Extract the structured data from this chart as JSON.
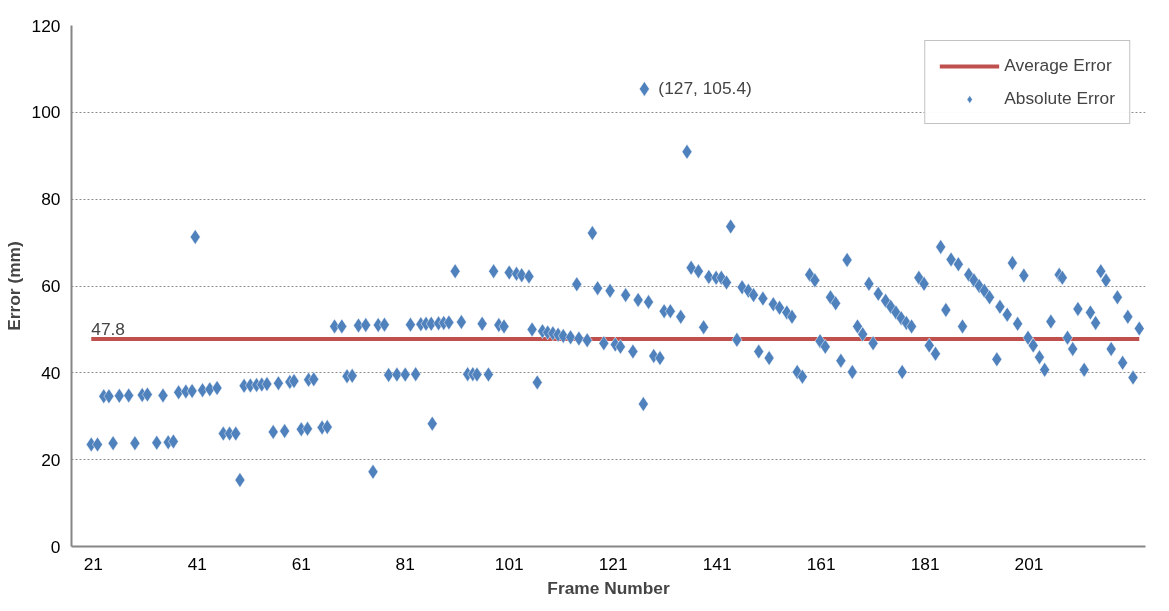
{
  "chart_data": {
    "type": "scatter",
    "xlabel": "Frame Number",
    "ylabel": "Error (mm)",
    "xlim": [
      16.8,
      223.4
    ],
    "xticks": [
      21,
      41,
      61,
      81,
      101,
      121,
      141,
      161,
      181,
      201
    ],
    "ylim": [
      0,
      120
    ],
    "yticks": [
      0,
      20,
      40,
      60,
      80,
      100,
      120
    ],
    "grid": "y",
    "legend": "top right",
    "series": [
      {
        "name": "Average Error",
        "type": "line",
        "color": "#c0504d",
        "line_style": "solid",
        "marker": "none",
        "x": [
          20.6,
          222.2
        ],
        "values": [
          47.8,
          47.8
        ],
        "value_labels": [
          "47.8",
          null
        ]
      },
      {
        "name": "Absolute Error",
        "color": "#4f81bd",
        "marker": "diamond",
        "x": [
          20.6,
          21.8,
          24.8,
          29,
          33.2,
          35.4,
          36.4,
          23,
          24,
          26,
          27.8,
          30.4,
          31.4,
          34.4,
          37.4,
          38.8,
          40,
          42,
          43.4,
          44.8,
          40.6,
          46,
          47.2,
          48.4,
          49.2,
          50,
          51.2,
          52.4,
          53.4,
          54.4,
          56.6,
          58.8,
          59.6,
          62.4,
          63.4,
          55.6,
          57.8,
          61,
          62.2,
          65,
          66,
          67.4,
          68.8,
          72,
          73.4,
          75.8,
          77,
          69.8,
          70.8,
          74.8,
          77.8,
          79.4,
          81,
          83,
          82,
          84,
          85,
          86,
          87.4,
          88.4,
          89.4,
          91.8,
          86.2,
          90.6,
          93,
          94,
          94.8,
          97,
          95.8,
          99,
          100,
          98,
          101,
          102.4,
          103.4,
          104.8,
          105.4,
          106.4,
          107.4,
          108.4,
          109.4,
          110.4,
          111.4,
          112.8,
          114.4,
          116,
          114,
          117,
          118,
          120.4,
          119.2,
          121.4,
          122.4,
          124.8,
          123.4,
          125.8,
          127.8,
          126.8,
          128.8,
          130,
          130.8,
          132,
          134,
          127,
          135.2,
          136,
          137.4,
          139.4,
          140.8,
          141.8,
          142.8,
          138.4,
          143.6,
          144.8,
          145.8,
          147,
          148,
          149.8,
          151.8,
          153,
          154.4,
          155.4,
          149,
          151,
          156.4,
          157.4,
          158.8,
          159.8,
          160.8,
          161.8,
          162.8,
          163.8,
          164.8,
          167,
          166,
          168,
          169,
          170.2,
          171,
          172,
          173.4,
          174.4,
          175.4,
          176.4,
          177.4,
          178.4,
          176.6,
          179.8,
          180.8,
          181.8,
          183,
          184,
          185,
          186,
          187.4,
          188.2,
          189.4,
          190.4,
          191.4,
          192.4,
          193.4,
          194.8,
          195.4,
          196.8,
          198.8,
          197.8,
          200,
          200.8,
          201.8,
          203,
          204,
          205.2,
          206.8,
          207.4,
          208.4,
          209.4,
          210.4,
          212.8,
          213.8,
          211.6,
          214.8,
          215.8,
          216.8,
          219,
          218,
          220,
          221,
          222.2
        ],
        "values": [
          23.5,
          23.5,
          23.8,
          23.8,
          23.9,
          24,
          24.2,
          34.6,
          34.6,
          34.7,
          34.8,
          34.9,
          35,
          34.8,
          35.5,
          35.7,
          35.8,
          36,
          36.2,
          36.5,
          71.3,
          26,
          26,
          26,
          15.3,
          37,
          37.1,
          37.2,
          37.3,
          37.4,
          37.6,
          37.9,
          38.1,
          38.4,
          38.5,
          26.4,
          26.6,
          27,
          27.1,
          27.4,
          27.5,
          50.7,
          50.7,
          50.9,
          51,
          51,
          51.1,
          39.2,
          39.3,
          17.2,
          39.5,
          39.6,
          39.6,
          39.7,
          51.1,
          51.2,
          51.3,
          51.3,
          51.4,
          51.5,
          51.6,
          51.7,
          28.3,
          63.4,
          39.7,
          39.7,
          39.6,
          39.6,
          51.3,
          51,
          50.7,
          63.4,
          63.1,
          62.8,
          62.5,
          62.2,
          50,
          37.8,
          49.6,
          49.3,
          49.1,
          48.8,
          48.5,
          48.2,
          47.9,
          47.5,
          60.4,
          72.2,
          59.5,
          58.9,
          46.8,
          46.5,
          46,
          44.9,
          57.9,
          56.8,
          56.3,
          32.8,
          43.9,
          43.4,
          54.2,
          54.2,
          52.9,
          105.4,
          90.9,
          64.2,
          63.4,
          62.1,
          61.9,
          61.9,
          60.8,
          50.5,
          73.7,
          47.6,
          59.7,
          58.9,
          57.9,
          57.1,
          55.8,
          55,
          53.9,
          52.9,
          44.9,
          43.4,
          40.2,
          39.1,
          62.6,
          61.3,
          47.3,
          46,
          57.4,
          56,
          42.8,
          40.2,
          66,
          50.7,
          48.9,
          60.5,
          46.8,
          58.2,
          56.6,
          55.2,
          53.9,
          52.6,
          51.5,
          50.7,
          40.2,
          61.9,
          60.5,
          46.3,
          44.4,
          69,
          54.5,
          66.1,
          65,
          50.7,
          62.6,
          61.3,
          60,
          58.9,
          57.4,
          43.1,
          55.2,
          53.4,
          51.3,
          65.3,
          62.4,
          48.1,
          46.3,
          43.6,
          40.7,
          51.8,
          62.6,
          61.9,
          48.1,
          45.5,
          54.7,
          53.9,
          51.5,
          40.7,
          63.4,
          61.3,
          45.5,
          42.3,
          57.4,
          52.9,
          38.9,
          50.2
        ]
      }
    ],
    "annotations": [
      {
        "text": "(127, 105.4)",
        "x": 127,
        "y": 105.4
      }
    ]
  }
}
